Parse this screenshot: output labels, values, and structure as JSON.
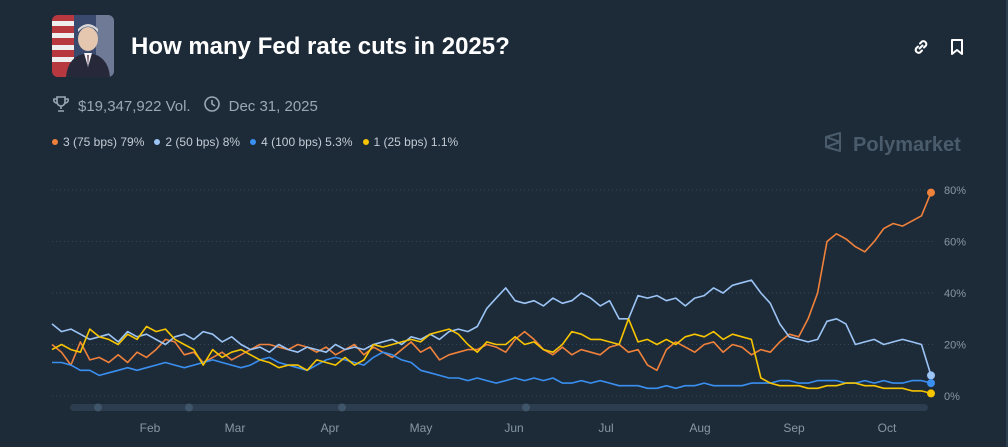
{
  "header": {
    "title": "How many Fed rate cuts in 2025?",
    "volume": "$19,347,922 Vol.",
    "end_date": "Dec 31, 2025",
    "brand": "Polymarket"
  },
  "legend": [
    {
      "label": "3 (75 bps) 79%",
      "color": "#f0813a"
    },
    {
      "label": "2 (50 bps) 8%",
      "color": "#9cc4f5"
    },
    {
      "label": "4 (100 bps) 5.3%",
      "color": "#3a8ff0"
    },
    {
      "label": "1 (25 bps) 1.1%",
      "color": "#f7c400"
    }
  ],
  "icons": {
    "link": "link-icon",
    "bookmark": "bookmark-icon",
    "trophy": "trophy-icon",
    "clock": "clock-icon",
    "brand": "polymarket-logo-icon"
  },
  "chart_data": {
    "type": "line",
    "x_ticks": [
      "Feb",
      "Mar",
      "Apr",
      "May",
      "Jun",
      "Jul",
      "Aug",
      "Sep",
      "Oct"
    ],
    "y_ticks": [
      "0%",
      "20%",
      "40%",
      "60%",
      "80%"
    ],
    "ylim": [
      0,
      80
    ],
    "grid": true,
    "series": [
      {
        "name": "3 (75 bps)",
        "color": "#f0813a",
        "values": [
          20,
          17,
          12,
          21,
          14,
          15,
          13,
          16,
          13,
          17,
          15,
          18,
          22,
          21,
          16,
          17,
          13,
          15,
          17,
          14,
          16,
          18,
          20,
          20,
          19,
          18,
          20,
          19,
          17,
          19,
          16,
          18,
          20,
          16,
          19,
          17,
          15,
          18,
          21,
          17,
          19,
          14,
          16,
          17,
          18,
          18,
          20,
          19,
          17,
          22,
          25,
          22,
          18,
          16,
          19,
          16,
          18,
          17,
          16,
          19,
          20,
          17,
          18,
          12,
          10,
          18,
          21,
          19,
          17,
          20,
          21,
          17,
          20,
          19,
          16,
          18,
          17,
          21,
          24,
          23,
          30,
          40,
          60,
          63,
          61,
          58,
          56,
          60,
          65,
          67,
          66,
          68,
          70,
          79
        ]
      },
      {
        "name": "2 (50 bps)",
        "color": "#9cc4f5",
        "values": [
          28,
          25,
          26,
          24,
          22,
          23,
          24,
          21,
          25,
          23,
          24,
          22,
          20,
          23,
          24,
          22,
          25,
          24,
          21,
          23,
          20,
          18,
          19,
          17,
          20,
          18,
          17,
          19,
          18,
          17,
          20,
          18,
          19,
          18,
          20,
          21,
          22,
          20,
          23,
          22,
          24,
          22,
          25,
          26,
          25,
          27,
          34,
          38,
          42,
          37,
          36,
          37,
          35,
          38,
          36,
          37,
          40,
          38,
          35,
          37,
          30,
          30,
          39,
          38,
          39,
          37,
          38,
          35,
          38,
          39,
          42,
          40,
          43,
          44,
          45,
          40,
          36,
          28,
          23,
          22,
          21,
          22,
          29,
          30,
          28,
          20,
          21,
          22,
          20,
          21,
          22,
          21,
          20,
          8
        ]
      },
      {
        "name": "4 (100 bps)",
        "color": "#3a8ff0",
        "values": [
          13,
          13,
          12,
          10,
          10,
          8,
          9,
          10,
          11,
          10,
          11,
          12,
          13,
          12,
          11,
          12,
          13,
          14,
          13,
          12,
          11,
          12,
          14,
          15,
          13,
          12,
          11,
          10,
          12,
          14,
          15,
          14,
          13,
          12,
          15,
          17,
          16,
          14,
          13,
          10,
          9,
          8,
          7,
          7,
          6,
          7,
          6,
          5,
          6,
          7,
          6,
          7,
          6,
          7,
          5,
          5,
          6,
          5,
          6,
          5,
          4,
          4,
          4,
          3,
          3,
          4,
          3,
          4,
          4,
          5,
          4,
          4,
          4,
          4,
          5,
          5,
          5,
          6,
          6,
          5,
          5,
          6,
          6,
          6,
          5,
          5,
          6,
          5,
          6,
          5,
          5,
          6,
          6,
          5
        ]
      },
      {
        "name": "1 (25 bps)",
        "color": "#f7c400",
        "values": [
          18,
          20,
          18,
          17,
          26,
          23,
          22,
          20,
          24,
          22,
          27,
          25,
          26,
          22,
          20,
          18,
          12,
          18,
          15,
          17,
          18,
          16,
          14,
          13,
          11,
          12,
          12,
          10,
          14,
          13,
          12,
          15,
          12,
          14,
          20,
          19,
          20,
          21,
          22,
          21,
          24,
          25,
          26,
          24,
          20,
          17,
          21,
          20,
          20,
          23,
          20,
          21,
          18,
          17,
          20,
          25,
          24,
          22,
          22,
          21,
          20,
          30,
          21,
          22,
          20,
          22,
          20,
          23,
          24,
          23,
          25,
          22,
          24,
          23,
          22,
          7,
          5,
          4,
          4,
          4,
          3,
          3,
          4,
          4,
          5,
          5,
          4,
          4,
          3,
          3,
          3,
          2,
          2,
          1
        ]
      }
    ]
  }
}
